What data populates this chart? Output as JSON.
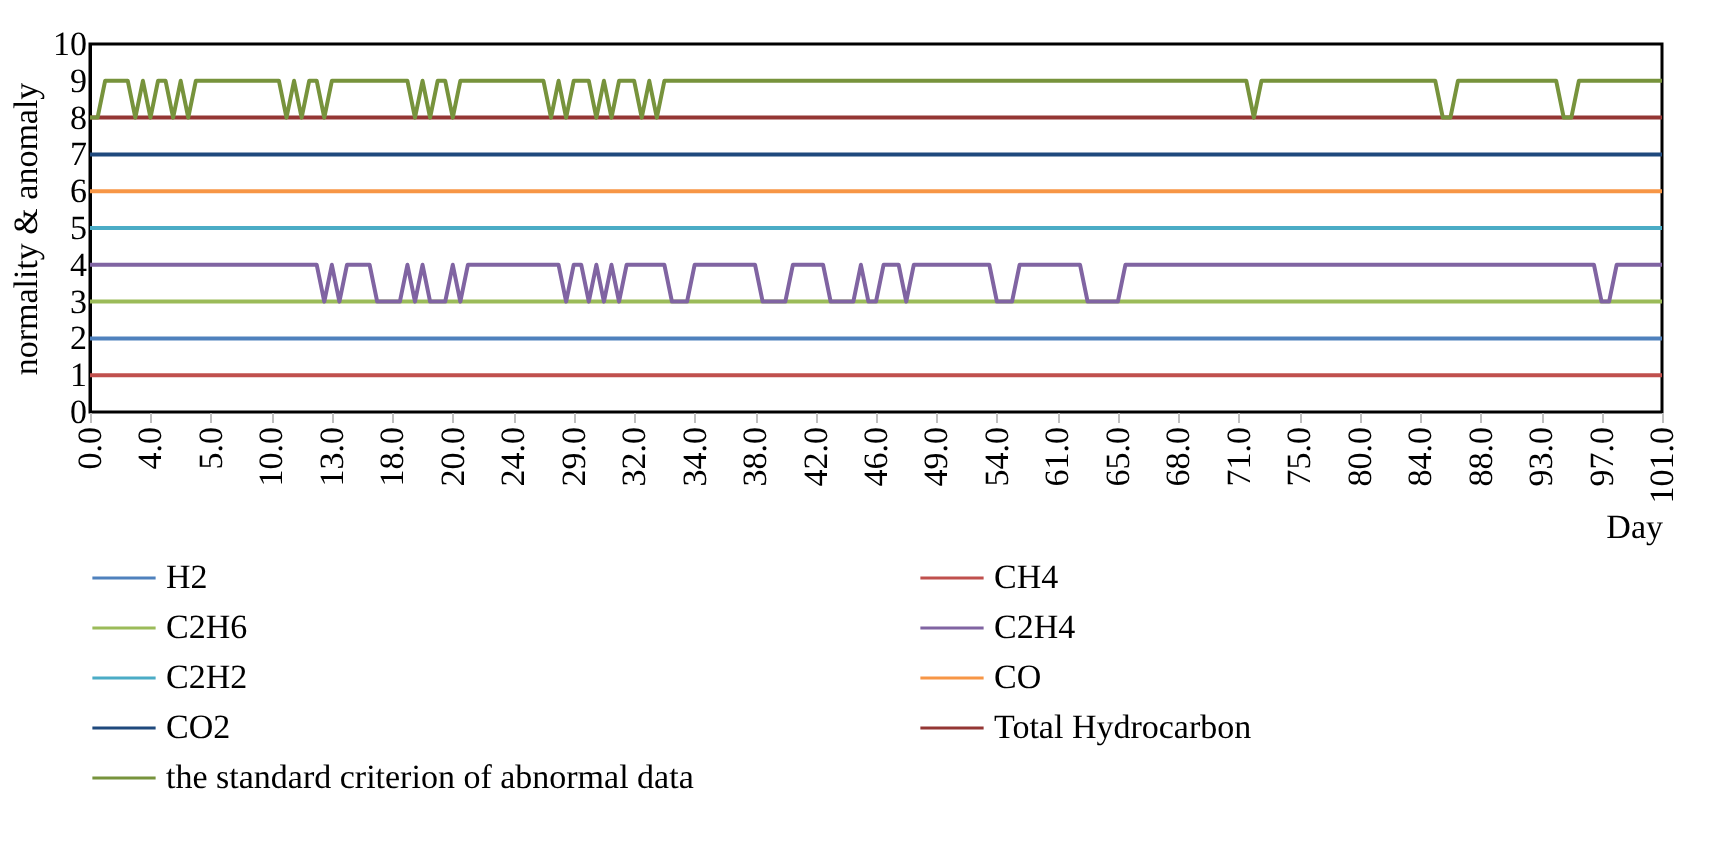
{
  "chart_data": {
    "type": "line",
    "xlabel": "Day",
    "ylabel": "normality & anomaly",
    "categories": [
      "0.0",
      null,
      null,
      null,
      null,
      null,
      null,
      null,
      "4.0",
      null,
      null,
      null,
      null,
      null,
      null,
      null,
      "5.0",
      null,
      null,
      null,
      null,
      null,
      null,
      null,
      "10.0",
      null,
      null,
      null,
      null,
      null,
      null,
      null,
      "13.0",
      null,
      null,
      null,
      null,
      null,
      null,
      null,
      "18.0",
      null,
      null,
      null,
      null,
      null,
      null,
      null,
      "20.0",
      null,
      null,
      null,
      null,
      null,
      null,
      null,
      "24.0",
      null,
      null,
      null,
      null,
      null,
      null,
      null,
      "29.0",
      null,
      null,
      null,
      null,
      null,
      null,
      null,
      "32.0",
      null,
      null,
      null,
      null,
      null,
      null,
      null,
      "34.0",
      null,
      null,
      null,
      null,
      null,
      null,
      null,
      "38.0",
      null,
      null,
      null,
      null,
      null,
      null,
      null,
      "42.0",
      null,
      null,
      null,
      null,
      null,
      null,
      null,
      "46.0",
      null,
      null,
      null,
      null,
      null,
      null,
      null,
      "49.0",
      null,
      null,
      null,
      null,
      null,
      null,
      null,
      "54.0",
      null,
      null,
      null,
      null,
      null,
      null,
      null,
      "61.0",
      null,
      null,
      null,
      null,
      null,
      null,
      null,
      "65.0",
      null,
      null,
      null,
      null,
      null,
      null,
      null,
      "68.0",
      null,
      null,
      null,
      null,
      null,
      null,
      null,
      "71.0",
      null,
      null,
      null,
      null,
      null,
      null,
      null,
      "75.0",
      null,
      null,
      null,
      null,
      null,
      null,
      null,
      "80.0",
      null,
      null,
      null,
      null,
      null,
      null,
      null,
      "84.0",
      null,
      null,
      null,
      null,
      null,
      null,
      null,
      "88.0",
      null,
      null,
      null,
      null,
      null,
      null,
      null,
      "93.0",
      null,
      null,
      null,
      null,
      null,
      null,
      null,
      "97.0",
      null,
      null,
      null,
      null,
      null,
      null,
      null,
      "101.0"
    ],
    "ylim": [
      0,
      10
    ],
    "yticks": [
      0,
      1,
      2,
      3,
      4,
      5,
      6,
      7,
      8,
      9,
      10
    ],
    "grid": false,
    "legend": "bottom",
    "line_style": "solid",
    "marker": "none",
    "series": [
      {
        "name": "H2",
        "color": "#4f81bd",
        "values": [
          2,
          2,
          2,
          2,
          2,
          2,
          2,
          2,
          2,
          2,
          2,
          2,
          2,
          2,
          2,
          2,
          2,
          2,
          2,
          2,
          2,
          2,
          2,
          2,
          2,
          2,
          2,
          2,
          2,
          2,
          2,
          2,
          2,
          2,
          2,
          2,
          2,
          2,
          2,
          2,
          2,
          2,
          2,
          2,
          2,
          2,
          2,
          2,
          2,
          2,
          2,
          2,
          2,
          2,
          2,
          2,
          2,
          2,
          2,
          2,
          2,
          2,
          2,
          2,
          2,
          2,
          2,
          2,
          2,
          2,
          2,
          2,
          2,
          2,
          2,
          2,
          2,
          2,
          2,
          2,
          2,
          2,
          2,
          2,
          2,
          2,
          2,
          2,
          2,
          2,
          2,
          2,
          2,
          2,
          2,
          2,
          2,
          2,
          2,
          2,
          2,
          2,
          2,
          2,
          2,
          2,
          2,
          2,
          2,
          2,
          2,
          2,
          2,
          2,
          2,
          2,
          2,
          2,
          2,
          2,
          2,
          2,
          2,
          2,
          2,
          2,
          2,
          2,
          2,
          2,
          2,
          2,
          2,
          2,
          2,
          2,
          2,
          2,
          2,
          2,
          2,
          2,
          2,
          2,
          2,
          2,
          2,
          2,
          2,
          2,
          2,
          2,
          2,
          2,
          2,
          2,
          2,
          2,
          2,
          2,
          2,
          2,
          2,
          2,
          2,
          2,
          2,
          2,
          2,
          2,
          2,
          2,
          2,
          2,
          2,
          2,
          2,
          2,
          2,
          2,
          2,
          2,
          2,
          2,
          2,
          2,
          2,
          2,
          2,
          2,
          2,
          2,
          2,
          2,
          2,
          2,
          2,
          2,
          2,
          2,
          2,
          2,
          2,
          2,
          2,
          2,
          2,
          2,
          2
        ]
      },
      {
        "name": "CH4",
        "color": "#c0504d",
        "values": [
          1,
          1,
          1,
          1,
          1,
          1,
          1,
          1,
          1,
          1,
          1,
          1,
          1,
          1,
          1,
          1,
          1,
          1,
          1,
          1,
          1,
          1,
          1,
          1,
          1,
          1,
          1,
          1,
          1,
          1,
          1,
          1,
          1,
          1,
          1,
          1,
          1,
          1,
          1,
          1,
          1,
          1,
          1,
          1,
          1,
          1,
          1,
          1,
          1,
          1,
          1,
          1,
          1,
          1,
          1,
          1,
          1,
          1,
          1,
          1,
          1,
          1,
          1,
          1,
          1,
          1,
          1,
          1,
          1,
          1,
          1,
          1,
          1,
          1,
          1,
          1,
          1,
          1,
          1,
          1,
          1,
          1,
          1,
          1,
          1,
          1,
          1,
          1,
          1,
          1,
          1,
          1,
          1,
          1,
          1,
          1,
          1,
          1,
          1,
          1,
          1,
          1,
          1,
          1,
          1,
          1,
          1,
          1,
          1,
          1,
          1,
          1,
          1,
          1,
          1,
          1,
          1,
          1,
          1,
          1,
          1,
          1,
          1,
          1,
          1,
          1,
          1,
          1,
          1,
          1,
          1,
          1,
          1,
          1,
          1,
          1,
          1,
          1,
          1,
          1,
          1,
          1,
          1,
          1,
          1,
          1,
          1,
          1,
          1,
          1,
          1,
          1,
          1,
          1,
          1,
          1,
          1,
          1,
          1,
          1,
          1,
          1,
          1,
          1,
          1,
          1,
          1,
          1,
          1,
          1,
          1,
          1,
          1,
          1,
          1,
          1,
          1,
          1,
          1,
          1,
          1,
          1,
          1,
          1,
          1,
          1,
          1,
          1,
          1,
          1,
          1,
          1,
          1,
          1,
          1,
          1,
          1,
          1,
          1,
          1,
          1,
          1,
          1,
          1,
          1,
          1,
          1,
          1,
          1
        ]
      },
      {
        "name": "C2H6",
        "color": "#9bbb59",
        "values": [
          3,
          3,
          3,
          3,
          3,
          3,
          3,
          3,
          3,
          3,
          3,
          3,
          3,
          3,
          3,
          3,
          3,
          3,
          3,
          3,
          3,
          3,
          3,
          3,
          3,
          3,
          3,
          3,
          3,
          3,
          3,
          3,
          3,
          3,
          3,
          3,
          3,
          3,
          3,
          3,
          3,
          3,
          3,
          3,
          3,
          3,
          3,
          3,
          3,
          3,
          3,
          3,
          3,
          3,
          3,
          3,
          3,
          3,
          3,
          3,
          3,
          3,
          3,
          3,
          3,
          3,
          3,
          3,
          3,
          3,
          3,
          3,
          3,
          3,
          3,
          3,
          3,
          3,
          3,
          3,
          3,
          3,
          3,
          3,
          3,
          3,
          3,
          3,
          3,
          3,
          3,
          3,
          3,
          3,
          3,
          3,
          3,
          3,
          3,
          3,
          3,
          3,
          3,
          3,
          3,
          3,
          3,
          3,
          3,
          3,
          3,
          3,
          3,
          3,
          3,
          3,
          3,
          3,
          3,
          3,
          3,
          3,
          3,
          3,
          3,
          3,
          3,
          3,
          3,
          3,
          3,
          3,
          3,
          3,
          3,
          3,
          3,
          3,
          3,
          3,
          3,
          3,
          3,
          3,
          3,
          3,
          3,
          3,
          3,
          3,
          3,
          3,
          3,
          3,
          3,
          3,
          3,
          3,
          3,
          3,
          3,
          3,
          3,
          3,
          3,
          3,
          3,
          3,
          3,
          3,
          3,
          3,
          3,
          3,
          3,
          3,
          3,
          3,
          3,
          3,
          3,
          3,
          3,
          3,
          3,
          3,
          3,
          3,
          3,
          3,
          3,
          3,
          3,
          3,
          3,
          3,
          3,
          3,
          3,
          3,
          3,
          3,
          3,
          3,
          3,
          3,
          3,
          3,
          3
        ]
      },
      {
        "name": "C2H4",
        "color": "#8064a2",
        "values": [
          4,
          4,
          4,
          4,
          4,
          4,
          4,
          4,
          4,
          4,
          4,
          4,
          4,
          4,
          4,
          4,
          4,
          4,
          4,
          4,
          4,
          4,
          4,
          4,
          4,
          4,
          4,
          4,
          4,
          4,
          4,
          3,
          4,
          3,
          4,
          4,
          4,
          4,
          3,
          3,
          3,
          3,
          4,
          3,
          4,
          3,
          3,
          3,
          4,
          3,
          4,
          4,
          4,
          4,
          4,
          4,
          4,
          4,
          4,
          4,
          4,
          4,
          4,
          3,
          4,
          4,
          3,
          4,
          3,
          4,
          3,
          4,
          4,
          4,
          4,
          4,
          4,
          3,
          3,
          3,
          4,
          4,
          4,
          4,
          4,
          4,
          4,
          4,
          4,
          3,
          3,
          3,
          3,
          4,
          4,
          4,
          4,
          4,
          3,
          3,
          3,
          3,
          4,
          3,
          3,
          4,
          4,
          4,
          3,
          4,
          4,
          4,
          4,
          4,
          4,
          4,
          4,
          4,
          4,
          4,
          3,
          3,
          3,
          4,
          4,
          4,
          4,
          4,
          4,
          4,
          4,
          4,
          3,
          3,
          3,
          3,
          3,
          4,
          4,
          4,
          4,
          4,
          4,
          4,
          4,
          4,
          4,
          4,
          4,
          4,
          4,
          4,
          4,
          4,
          4,
          4,
          4,
          4,
          4,
          4,
          4,
          4,
          4,
          4,
          4,
          4,
          4,
          4,
          4,
          4,
          4,
          4,
          4,
          4,
          4,
          4,
          4,
          4,
          4,
          4,
          4,
          4,
          4,
          4,
          4,
          4,
          4,
          4,
          4,
          4,
          4,
          4,
          4,
          4,
          4,
          4,
          4,
          4,
          4,
          4,
          3,
          3,
          4,
          4,
          4,
          4,
          4,
          4,
          4
        ]
      },
      {
        "name": "C2H2",
        "color": "#4bacc6",
        "values": [
          5,
          5,
          5,
          5,
          5,
          5,
          5,
          5,
          5,
          5,
          5,
          5,
          5,
          5,
          5,
          5,
          5,
          5,
          5,
          5,
          5,
          5,
          5,
          5,
          5,
          5,
          5,
          5,
          5,
          5,
          5,
          5,
          5,
          5,
          5,
          5,
          5,
          5,
          5,
          5,
          5,
          5,
          5,
          5,
          5,
          5,
          5,
          5,
          5,
          5,
          5,
          5,
          5,
          5,
          5,
          5,
          5,
          5,
          5,
          5,
          5,
          5,
          5,
          5,
          5,
          5,
          5,
          5,
          5,
          5,
          5,
          5,
          5,
          5,
          5,
          5,
          5,
          5,
          5,
          5,
          5,
          5,
          5,
          5,
          5,
          5,
          5,
          5,
          5,
          5,
          5,
          5,
          5,
          5,
          5,
          5,
          5,
          5,
          5,
          5,
          5,
          5,
          5,
          5,
          5,
          5,
          5,
          5,
          5,
          5,
          5,
          5,
          5,
          5,
          5,
          5,
          5,
          5,
          5,
          5,
          5,
          5,
          5,
          5,
          5,
          5,
          5,
          5,
          5,
          5,
          5,
          5,
          5,
          5,
          5,
          5,
          5,
          5,
          5,
          5,
          5,
          5,
          5,
          5,
          5,
          5,
          5,
          5,
          5,
          5,
          5,
          5,
          5,
          5,
          5,
          5,
          5,
          5,
          5,
          5,
          5,
          5,
          5,
          5,
          5,
          5,
          5,
          5,
          5,
          5,
          5,
          5,
          5,
          5,
          5,
          5,
          5,
          5,
          5,
          5,
          5,
          5,
          5,
          5,
          5,
          5,
          5,
          5,
          5,
          5,
          5,
          5,
          5,
          5,
          5,
          5,
          5,
          5,
          5,
          5,
          5,
          5,
          5,
          5,
          5,
          5,
          5,
          5,
          5
        ]
      },
      {
        "name": "CO",
        "color": "#f79646",
        "values": [
          6,
          6,
          6,
          6,
          6,
          6,
          6,
          6,
          6,
          6,
          6,
          6,
          6,
          6,
          6,
          6,
          6,
          6,
          6,
          6,
          6,
          6,
          6,
          6,
          6,
          6,
          6,
          6,
          6,
          6,
          6,
          6,
          6,
          6,
          6,
          6,
          6,
          6,
          6,
          6,
          6,
          6,
          6,
          6,
          6,
          6,
          6,
          6,
          6,
          6,
          6,
          6,
          6,
          6,
          6,
          6,
          6,
          6,
          6,
          6,
          6,
          6,
          6,
          6,
          6,
          6,
          6,
          6,
          6,
          6,
          6,
          6,
          6,
          6,
          6,
          6,
          6,
          6,
          6,
          6,
          6,
          6,
          6,
          6,
          6,
          6,
          6,
          6,
          6,
          6,
          6,
          6,
          6,
          6,
          6,
          6,
          6,
          6,
          6,
          6,
          6,
          6,
          6,
          6,
          6,
          6,
          6,
          6,
          6,
          6,
          6,
          6,
          6,
          6,
          6,
          6,
          6,
          6,
          6,
          6,
          6,
          6,
          6,
          6,
          6,
          6,
          6,
          6,
          6,
          6,
          6,
          6,
          6,
          6,
          6,
          6,
          6,
          6,
          6,
          6,
          6,
          6,
          6,
          6,
          6,
          6,
          6,
          6,
          6,
          6,
          6,
          6,
          6,
          6,
          6,
          6,
          6,
          6,
          6,
          6,
          6,
          6,
          6,
          6,
          6,
          6,
          6,
          6,
          6,
          6,
          6,
          6,
          6,
          6,
          6,
          6,
          6,
          6,
          6,
          6,
          6,
          6,
          6,
          6,
          6,
          6,
          6,
          6,
          6,
          6,
          6,
          6,
          6,
          6,
          6,
          6,
          6,
          6,
          6,
          6,
          6,
          6,
          6,
          6,
          6,
          6,
          6,
          6,
          6
        ]
      },
      {
        "name": "CO2",
        "color": "#1f497d",
        "values": [
          7,
          7,
          7,
          7,
          7,
          7,
          7,
          7,
          7,
          7,
          7,
          7,
          7,
          7,
          7,
          7,
          7,
          7,
          7,
          7,
          7,
          7,
          7,
          7,
          7,
          7,
          7,
          7,
          7,
          7,
          7,
          7,
          7,
          7,
          7,
          7,
          7,
          7,
          7,
          7,
          7,
          7,
          7,
          7,
          7,
          7,
          7,
          7,
          7,
          7,
          7,
          7,
          7,
          7,
          7,
          7,
          7,
          7,
          7,
          7,
          7,
          7,
          7,
          7,
          7,
          7,
          7,
          7,
          7,
          7,
          7,
          7,
          7,
          7,
          7,
          7,
          7,
          7,
          7,
          7,
          7,
          7,
          7,
          7,
          7,
          7,
          7,
          7,
          7,
          7,
          7,
          7,
          7,
          7,
          7,
          7,
          7,
          7,
          7,
          7,
          7,
          7,
          7,
          7,
          7,
          7,
          7,
          7,
          7,
          7,
          7,
          7,
          7,
          7,
          7,
          7,
          7,
          7,
          7,
          7,
          7,
          7,
          7,
          7,
          7,
          7,
          7,
          7,
          7,
          7,
          7,
          7,
          7,
          7,
          7,
          7,
          7,
          7,
          7,
          7,
          7,
          7,
          7,
          7,
          7,
          7,
          7,
          7,
          7,
          7,
          7,
          7,
          7,
          7,
          7,
          7,
          7,
          7,
          7,
          7,
          7,
          7,
          7,
          7,
          7,
          7,
          7,
          7,
          7,
          7,
          7,
          7,
          7,
          7,
          7,
          7,
          7,
          7,
          7,
          7,
          7,
          7,
          7,
          7,
          7,
          7,
          7,
          7,
          7,
          7,
          7,
          7,
          7,
          7,
          7,
          7,
          7,
          7,
          7,
          7,
          7,
          7,
          7,
          7,
          7,
          7,
          7,
          7,
          7
        ]
      },
      {
        "name": "Total Hydrocarbon",
        "color": "#943634",
        "values": [
          8,
          8,
          8,
          8,
          8,
          8,
          8,
          8,
          8,
          8,
          8,
          8,
          8,
          8,
          8,
          8,
          8,
          8,
          8,
          8,
          8,
          8,
          8,
          8,
          8,
          8,
          8,
          8,
          8,
          8,
          8,
          8,
          8,
          8,
          8,
          8,
          8,
          8,
          8,
          8,
          8,
          8,
          8,
          8,
          8,
          8,
          8,
          8,
          8,
          8,
          8,
          8,
          8,
          8,
          8,
          8,
          8,
          8,
          8,
          8,
          8,
          8,
          8,
          8,
          8,
          8,
          8,
          8,
          8,
          8,
          8,
          8,
          8,
          8,
          8,
          8,
          8,
          8,
          8,
          8,
          8,
          8,
          8,
          8,
          8,
          8,
          8,
          8,
          8,
          8,
          8,
          8,
          8,
          8,
          8,
          8,
          8,
          8,
          8,
          8,
          8,
          8,
          8,
          8,
          8,
          8,
          8,
          8,
          8,
          8,
          8,
          8,
          8,
          8,
          8,
          8,
          8,
          8,
          8,
          8,
          8,
          8,
          8,
          8,
          8,
          8,
          8,
          8,
          8,
          8,
          8,
          8,
          8,
          8,
          8,
          8,
          8,
          8,
          8,
          8,
          8,
          8,
          8,
          8,
          8,
          8,
          8,
          8,
          8,
          8,
          8,
          8,
          8,
          8,
          8,
          8,
          8,
          8,
          8,
          8,
          8,
          8,
          8,
          8,
          8,
          8,
          8,
          8,
          8,
          8,
          8,
          8,
          8,
          8,
          8,
          8,
          8,
          8,
          8,
          8,
          8,
          8,
          8,
          8,
          8,
          8,
          8,
          8,
          8,
          8,
          8,
          8,
          8,
          8,
          8,
          8,
          8,
          8,
          8,
          8,
          8,
          8,
          8,
          8,
          8,
          8,
          8,
          8,
          8
        ]
      },
      {
        "name": "the standard criterion of abnormal data",
        "color": "#77933c",
        "values": [
          8,
          8,
          9,
          9,
          9,
          9,
          8,
          9,
          8,
          9,
          9,
          8,
          9,
          8,
          9,
          9,
          9,
          9,
          9,
          9,
          9,
          9,
          9,
          9,
          9,
          9,
          8,
          9,
          8,
          9,
          9,
          8,
          9,
          9,
          9,
          9,
          9,
          9,
          9,
          9,
          9,
          9,
          9,
          8,
          9,
          8,
          9,
          9,
          8,
          9,
          9,
          9,
          9,
          9,
          9,
          9,
          9,
          9,
          9,
          9,
          9,
          8,
          9,
          8,
          9,
          9,
          9,
          8,
          9,
          8,
          9,
          9,
          9,
          8,
          9,
          8,
          9,
          9,
          9,
          9,
          9,
          9,
          9,
          9,
          9,
          9,
          9,
          9,
          9,
          9,
          9,
          9,
          9,
          9,
          9,
          9,
          9,
          9,
          9,
          9,
          9,
          9,
          9,
          9,
          9,
          9,
          9,
          9,
          9,
          9,
          9,
          9,
          9,
          9,
          9,
          9,
          9,
          9,
          9,
          9,
          9,
          9,
          9,
          9,
          9,
          9,
          9,
          9,
          9,
          9,
          9,
          9,
          9,
          9,
          9,
          9,
          9,
          9,
          9,
          9,
          9,
          9,
          9,
          9,
          9,
          9,
          9,
          9,
          9,
          9,
          9,
          9,
          9,
          9,
          8,
          9,
          9,
          9,
          9,
          9,
          9,
          9,
          9,
          9,
          9,
          9,
          9,
          9,
          9,
          9,
          9,
          9,
          9,
          9,
          9,
          9,
          9,
          9,
          9,
          8,
          8,
          9,
          9,
          9,
          9,
          9,
          9,
          9,
          9,
          9,
          9,
          9,
          9,
          9,
          9,
          8,
          8,
          9,
          9,
          9,
          9,
          9,
          9,
          9,
          9,
          9,
          9,
          9,
          9
        ]
      }
    ]
  }
}
